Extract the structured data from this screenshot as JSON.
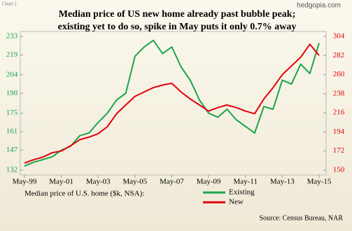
{
  "chart_data": {
    "type": "line",
    "chart_label": "Chart 2",
    "title": [
      "Median  price of US new home already past bubble  peak;",
      "existing yet to do so, spike in May puts  it only  0.7% away"
    ],
    "watermark": "hedgopia.com",
    "legend_title": "Median price of U.S. home ($k, NSA):",
    "source": "Source: Census Bureau, NAR",
    "categories": [
      "May-99",
      null,
      null,
      null,
      "May-01",
      null,
      null,
      null,
      "May-03",
      null,
      null,
      null,
      "May-05",
      null,
      null,
      null,
      "May-07",
      null,
      null,
      null,
      "May-09",
      null,
      null,
      null,
      "May-11",
      null,
      null,
      null,
      "May-13",
      null,
      null,
      null,
      "May-15"
    ],
    "series": [
      {
        "name": "Existing",
        "color": "#1aa64a",
        "axis": "y",
        "values": [
          135,
          138,
          140,
          142,
          147,
          150,
          158,
          160,
          168,
          175,
          185,
          190,
          218,
          225,
          230,
          220,
          225,
          210,
          200,
          185,
          175,
          172,
          178,
          170,
          165,
          160,
          180,
          178,
          200,
          197,
          212,
          205,
          228
        ]
      },
      {
        "name": "New",
        "color": "#e3000b",
        "axis": "y2",
        "values": [
          158,
          162,
          165,
          170,
          172,
          178,
          185,
          188,
          192,
          200,
          215,
          225,
          235,
          240,
          245,
          248,
          250,
          240,
          232,
          225,
          218,
          222,
          225,
          222,
          218,
          215,
          232,
          245,
          260,
          270,
          280,
          295,
          282
        ]
      }
    ],
    "ylim": [
      132,
      233
    ],
    "yticks": [
      132,
      147,
      161,
      175,
      190,
      204,
      219,
      233
    ],
    "y2lim": [
      150,
      304
    ],
    "y2ticks": [
      150,
      172,
      194,
      216,
      238,
      260,
      282,
      304
    ]
  }
}
